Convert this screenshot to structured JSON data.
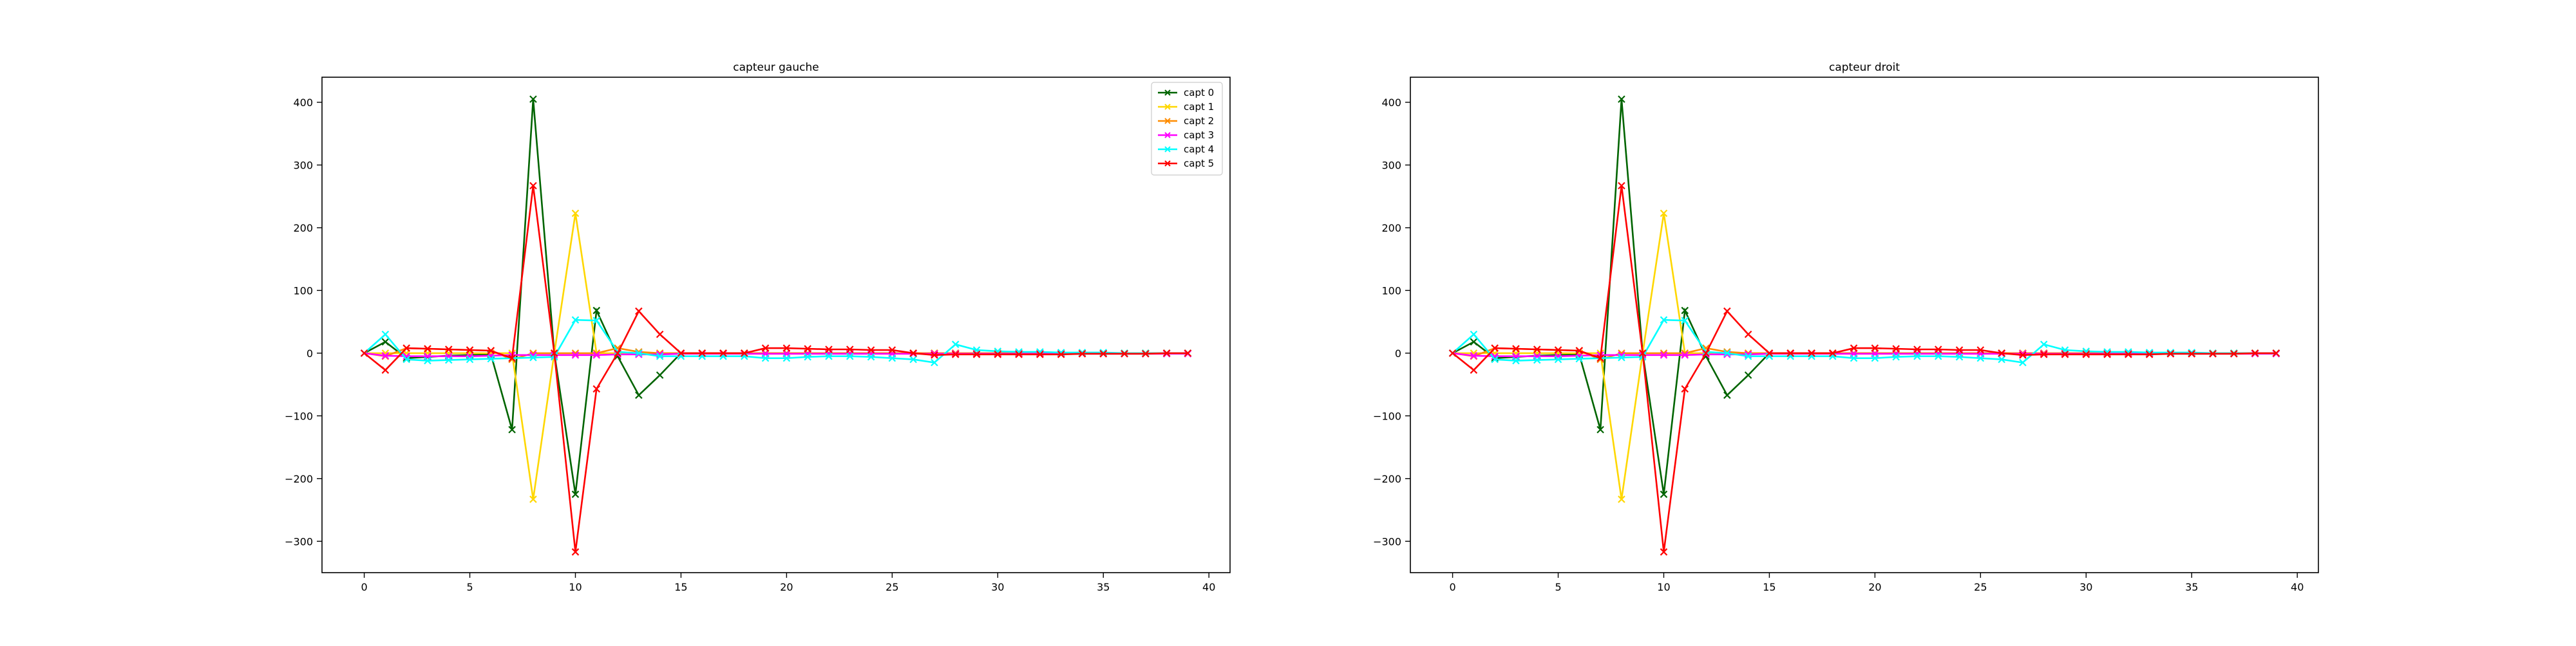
{
  "chart_data": [
    {
      "type": "line",
      "title": "capteur gauche",
      "xlabel": "",
      "ylabel": "",
      "xlim": [
        -2,
        41
      ],
      "ylim": [
        -350,
        440
      ],
      "xticks": [
        0,
        5,
        10,
        15,
        20,
        25,
        30,
        35,
        40
      ],
      "yticks": [
        -300,
        -200,
        -100,
        0,
        100,
        200,
        300,
        400
      ],
      "grid": false,
      "legend": "top-right",
      "x": [
        0,
        1,
        2,
        3,
        4,
        5,
        6,
        7,
        8,
        9,
        10,
        11,
        12,
        13,
        14,
        15,
        16,
        17,
        18,
        19,
        20,
        21,
        22,
        23,
        24,
        25,
        26,
        27,
        28,
        29,
        30,
        31,
        32,
        33,
        34,
        35,
        36,
        37,
        38,
        39
      ],
      "series": [
        {
          "name": "capt 0",
          "color": "#006400",
          "values": [
            0,
            18,
            -8,
            -6,
            -4,
            -3,
            -2,
            -122,
            405,
            0,
            -225,
            68,
            -5,
            -67,
            -35,
            0,
            0,
            0,
            0,
            0,
            0,
            0,
            0,
            0,
            0,
            0,
            0,
            0,
            0,
            0,
            0,
            0,
            0,
            0,
            0,
            0,
            0,
            0,
            0,
            0
          ]
        },
        {
          "name": "capt 1",
          "color": "#ffd700",
          "values": [
            0,
            0,
            0,
            0,
            0,
            0,
            0,
            0,
            -233,
            0,
            223,
            0,
            0,
            0,
            0,
            0,
            0,
            0,
            0,
            0,
            0,
            0,
            0,
            0,
            0,
            0,
            0,
            0,
            0,
            0,
            0,
            0,
            0,
            0,
            0,
            0,
            0,
            0,
            0,
            0
          ]
        },
        {
          "name": "capt 2",
          "color": "#ff8c00",
          "values": [
            0,
            -5,
            8,
            7,
            6,
            5,
            4,
            -10,
            0,
            0,
            0,
            0,
            8,
            2,
            0,
            0,
            0,
            0,
            0,
            0,
            0,
            0,
            0,
            0,
            0,
            0,
            0,
            0,
            0,
            0,
            0,
            0,
            0,
            0,
            0,
            0,
            0,
            0,
            0,
            0
          ]
        },
        {
          "name": "capt 3",
          "color": "#ff00ff",
          "values": [
            0,
            -4,
            -5,
            -5,
            -5,
            -5,
            -4,
            -3,
            -3,
            -3,
            -3,
            -3,
            -2,
            -2,
            -2,
            -1,
            -1,
            -1,
            -1,
            -1,
            -1,
            -1,
            -1,
            -1,
            -1,
            -1,
            -1,
            -1,
            -1,
            -1,
            -1,
            -1,
            -1,
            -1,
            -1,
            -1,
            -1,
            -1,
            -1,
            -1
          ]
        },
        {
          "name": "capt 4",
          "color": "#00ffff",
          "values": [
            0,
            30,
            -10,
            -12,
            -11,
            -10,
            -9,
            -8,
            -7,
            -6,
            53,
            52,
            2,
            0,
            -5,
            -5,
            -5,
            -5,
            -5,
            -8,
            -8,
            -6,
            -5,
            -5,
            -6,
            -8,
            -10,
            -15,
            14,
            5,
            3,
            2,
            2,
            1,
            1,
            1,
            0,
            0,
            0,
            0
          ]
        },
        {
          "name": "capt 5",
          "color": "#ff0000",
          "values": [
            0,
            -27,
            8,
            7,
            6,
            5,
            4,
            -8,
            267,
            0,
            -317,
            -57,
            0,
            67,
            30,
            0,
            0,
            0,
            0,
            8,
            8,
            7,
            6,
            6,
            5,
            5,
            0,
            -3,
            -2,
            -2,
            -2,
            -2,
            -2,
            -2,
            -1,
            -1,
            -1,
            -1,
            0,
            0
          ]
        }
      ]
    },
    {
      "type": "line",
      "title": "capteur droit",
      "xlabel": "",
      "ylabel": "",
      "xlim": [
        -2,
        41
      ],
      "ylim": [
        -350,
        440
      ],
      "xticks": [
        0,
        5,
        10,
        15,
        20,
        25,
        30,
        35,
        40
      ],
      "yticks": [
        -300,
        -200,
        -100,
        0,
        100,
        200,
        300,
        400
      ],
      "grid": false,
      "legend": "none",
      "x": [
        0,
        1,
        2,
        3,
        4,
        5,
        6,
        7,
        8,
        9,
        10,
        11,
        12,
        13,
        14,
        15,
        16,
        17,
        18,
        19,
        20,
        21,
        22,
        23,
        24,
        25,
        26,
        27,
        28,
        29,
        30,
        31,
        32,
        33,
        34,
        35,
        36,
        37,
        38,
        39
      ],
      "series": [
        {
          "name": "capt 0",
          "color": "#006400",
          "values": [
            0,
            18,
            -8,
            -6,
            -4,
            -3,
            -2,
            -122,
            405,
            0,
            -225,
            68,
            -5,
            -67,
            -35,
            0,
            0,
            0,
            0,
            0,
            0,
            0,
            0,
            0,
            0,
            0,
            0,
            0,
            0,
            0,
            0,
            0,
            0,
            0,
            0,
            0,
            0,
            0,
            0,
            0
          ]
        },
        {
          "name": "capt 1",
          "color": "#ffd700",
          "values": [
            0,
            0,
            0,
            0,
            0,
            0,
            0,
            0,
            -233,
            0,
            223,
            0,
            0,
            0,
            0,
            0,
            0,
            0,
            0,
            0,
            0,
            0,
            0,
            0,
            0,
            0,
            0,
            0,
            0,
            0,
            0,
            0,
            0,
            0,
            0,
            0,
            0,
            0,
            0,
            0
          ]
        },
        {
          "name": "capt 2",
          "color": "#ff8c00",
          "values": [
            0,
            -5,
            8,
            7,
            6,
            5,
            4,
            -10,
            0,
            0,
            0,
            0,
            8,
            2,
            0,
            0,
            0,
            0,
            0,
            0,
            0,
            0,
            0,
            0,
            0,
            0,
            0,
            0,
            0,
            0,
            0,
            0,
            0,
            0,
            0,
            0,
            0,
            0,
            0,
            0
          ]
        },
        {
          "name": "capt 3",
          "color": "#ff00ff",
          "values": [
            0,
            -4,
            -5,
            -5,
            -5,
            -5,
            -4,
            -3,
            -3,
            -3,
            -3,
            -3,
            -2,
            -2,
            -2,
            -1,
            -1,
            -1,
            -1,
            -1,
            -1,
            -1,
            -1,
            -1,
            -1,
            -1,
            -1,
            -1,
            -1,
            -1,
            -1,
            -1,
            -1,
            -1,
            -1,
            -1,
            -1,
            -1,
            -1,
            -1
          ]
        },
        {
          "name": "capt 4",
          "color": "#00ffff",
          "values": [
            0,
            30,
            -10,
            -12,
            -11,
            -10,
            -9,
            -8,
            -7,
            -6,
            53,
            52,
            2,
            0,
            -5,
            -5,
            -5,
            -5,
            -5,
            -8,
            -8,
            -6,
            -5,
            -5,
            -6,
            -8,
            -10,
            -15,
            14,
            5,
            3,
            2,
            2,
            1,
            1,
            1,
            0,
            0,
            0,
            0
          ]
        },
        {
          "name": "capt 5",
          "color": "#ff0000",
          "values": [
            0,
            -27,
            8,
            7,
            6,
            5,
            4,
            -8,
            267,
            0,
            -317,
            -57,
            0,
            67,
            30,
            0,
            0,
            0,
            0,
            8,
            8,
            7,
            6,
            6,
            5,
            5,
            0,
            -3,
            -2,
            -2,
            -2,
            -2,
            -2,
            -2,
            -1,
            -1,
            -1,
            -1,
            0,
            0
          ]
        }
      ]
    }
  ]
}
